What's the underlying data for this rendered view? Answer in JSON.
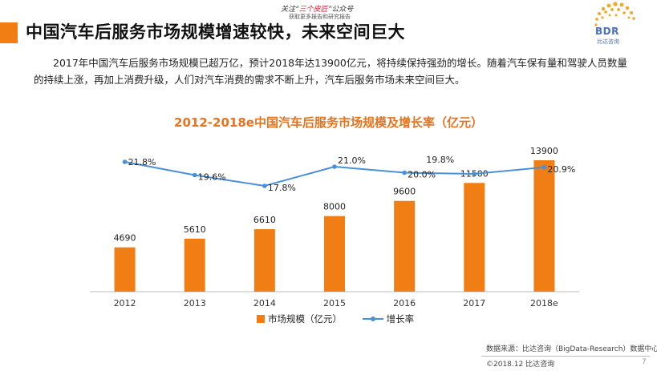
{
  "header": {
    "title": "中国汽车后服务市场规模增速较快，未来空间巨大",
    "note_prefix": "关注“",
    "note_highlight": "三个皮匠",
    "note_suffix": "”公众号",
    "note_line2": "获取更多报告和研究报告"
  },
  "logo": {
    "text": "BDR",
    "sub": "比达咨询"
  },
  "paragraph": "2017年中国汽车后服务市场规模已超万亿，预计2018年达13900亿元，将持续保持强劲的增长。随着汽车保有量和驾驶人员数量的持续上涨，再加上消费升级，人们对汽车消费的需求不断上升，汽车后服务市场未来空间巨大。",
  "colors": {
    "accent": "#F07E14",
    "bar": "#F07E14",
    "line": "#4A90D9",
    "title": "#E8731E"
  },
  "chart_data": {
    "type": "bar",
    "title": "2012-2018e中国汽车后服务市场规模及增长率（亿元）",
    "categories": [
      "2012",
      "2013",
      "2014",
      "2015",
      "2016",
      "2017",
      "2018e"
    ],
    "series": [
      {
        "name": "市场规模（亿元）",
        "type": "bar",
        "values": [
          4690,
          5610,
          6610,
          8000,
          9600,
          11500,
          13900
        ],
        "labels": [
          "4690",
          "5610",
          "6610",
          "8000",
          "9600",
          "11500",
          "13900"
        ]
      },
      {
        "name": "增长率",
        "type": "line",
        "values": [
          21.8,
          19.6,
          17.8,
          21.0,
          20.0,
          19.8,
          20.9
        ],
        "labels": [
          "21.8%",
          "19.6%",
          "17.8%",
          "21.0%",
          "20.0%",
          "19.8%",
          "20.9%"
        ]
      }
    ],
    "legend": "bottom",
    "grid": false
  },
  "footer": {
    "source": "数据来源：比达咨询（BigData-Research）数据中心",
    "copyright": "©2018.12 比达咨询",
    "page": "7"
  }
}
